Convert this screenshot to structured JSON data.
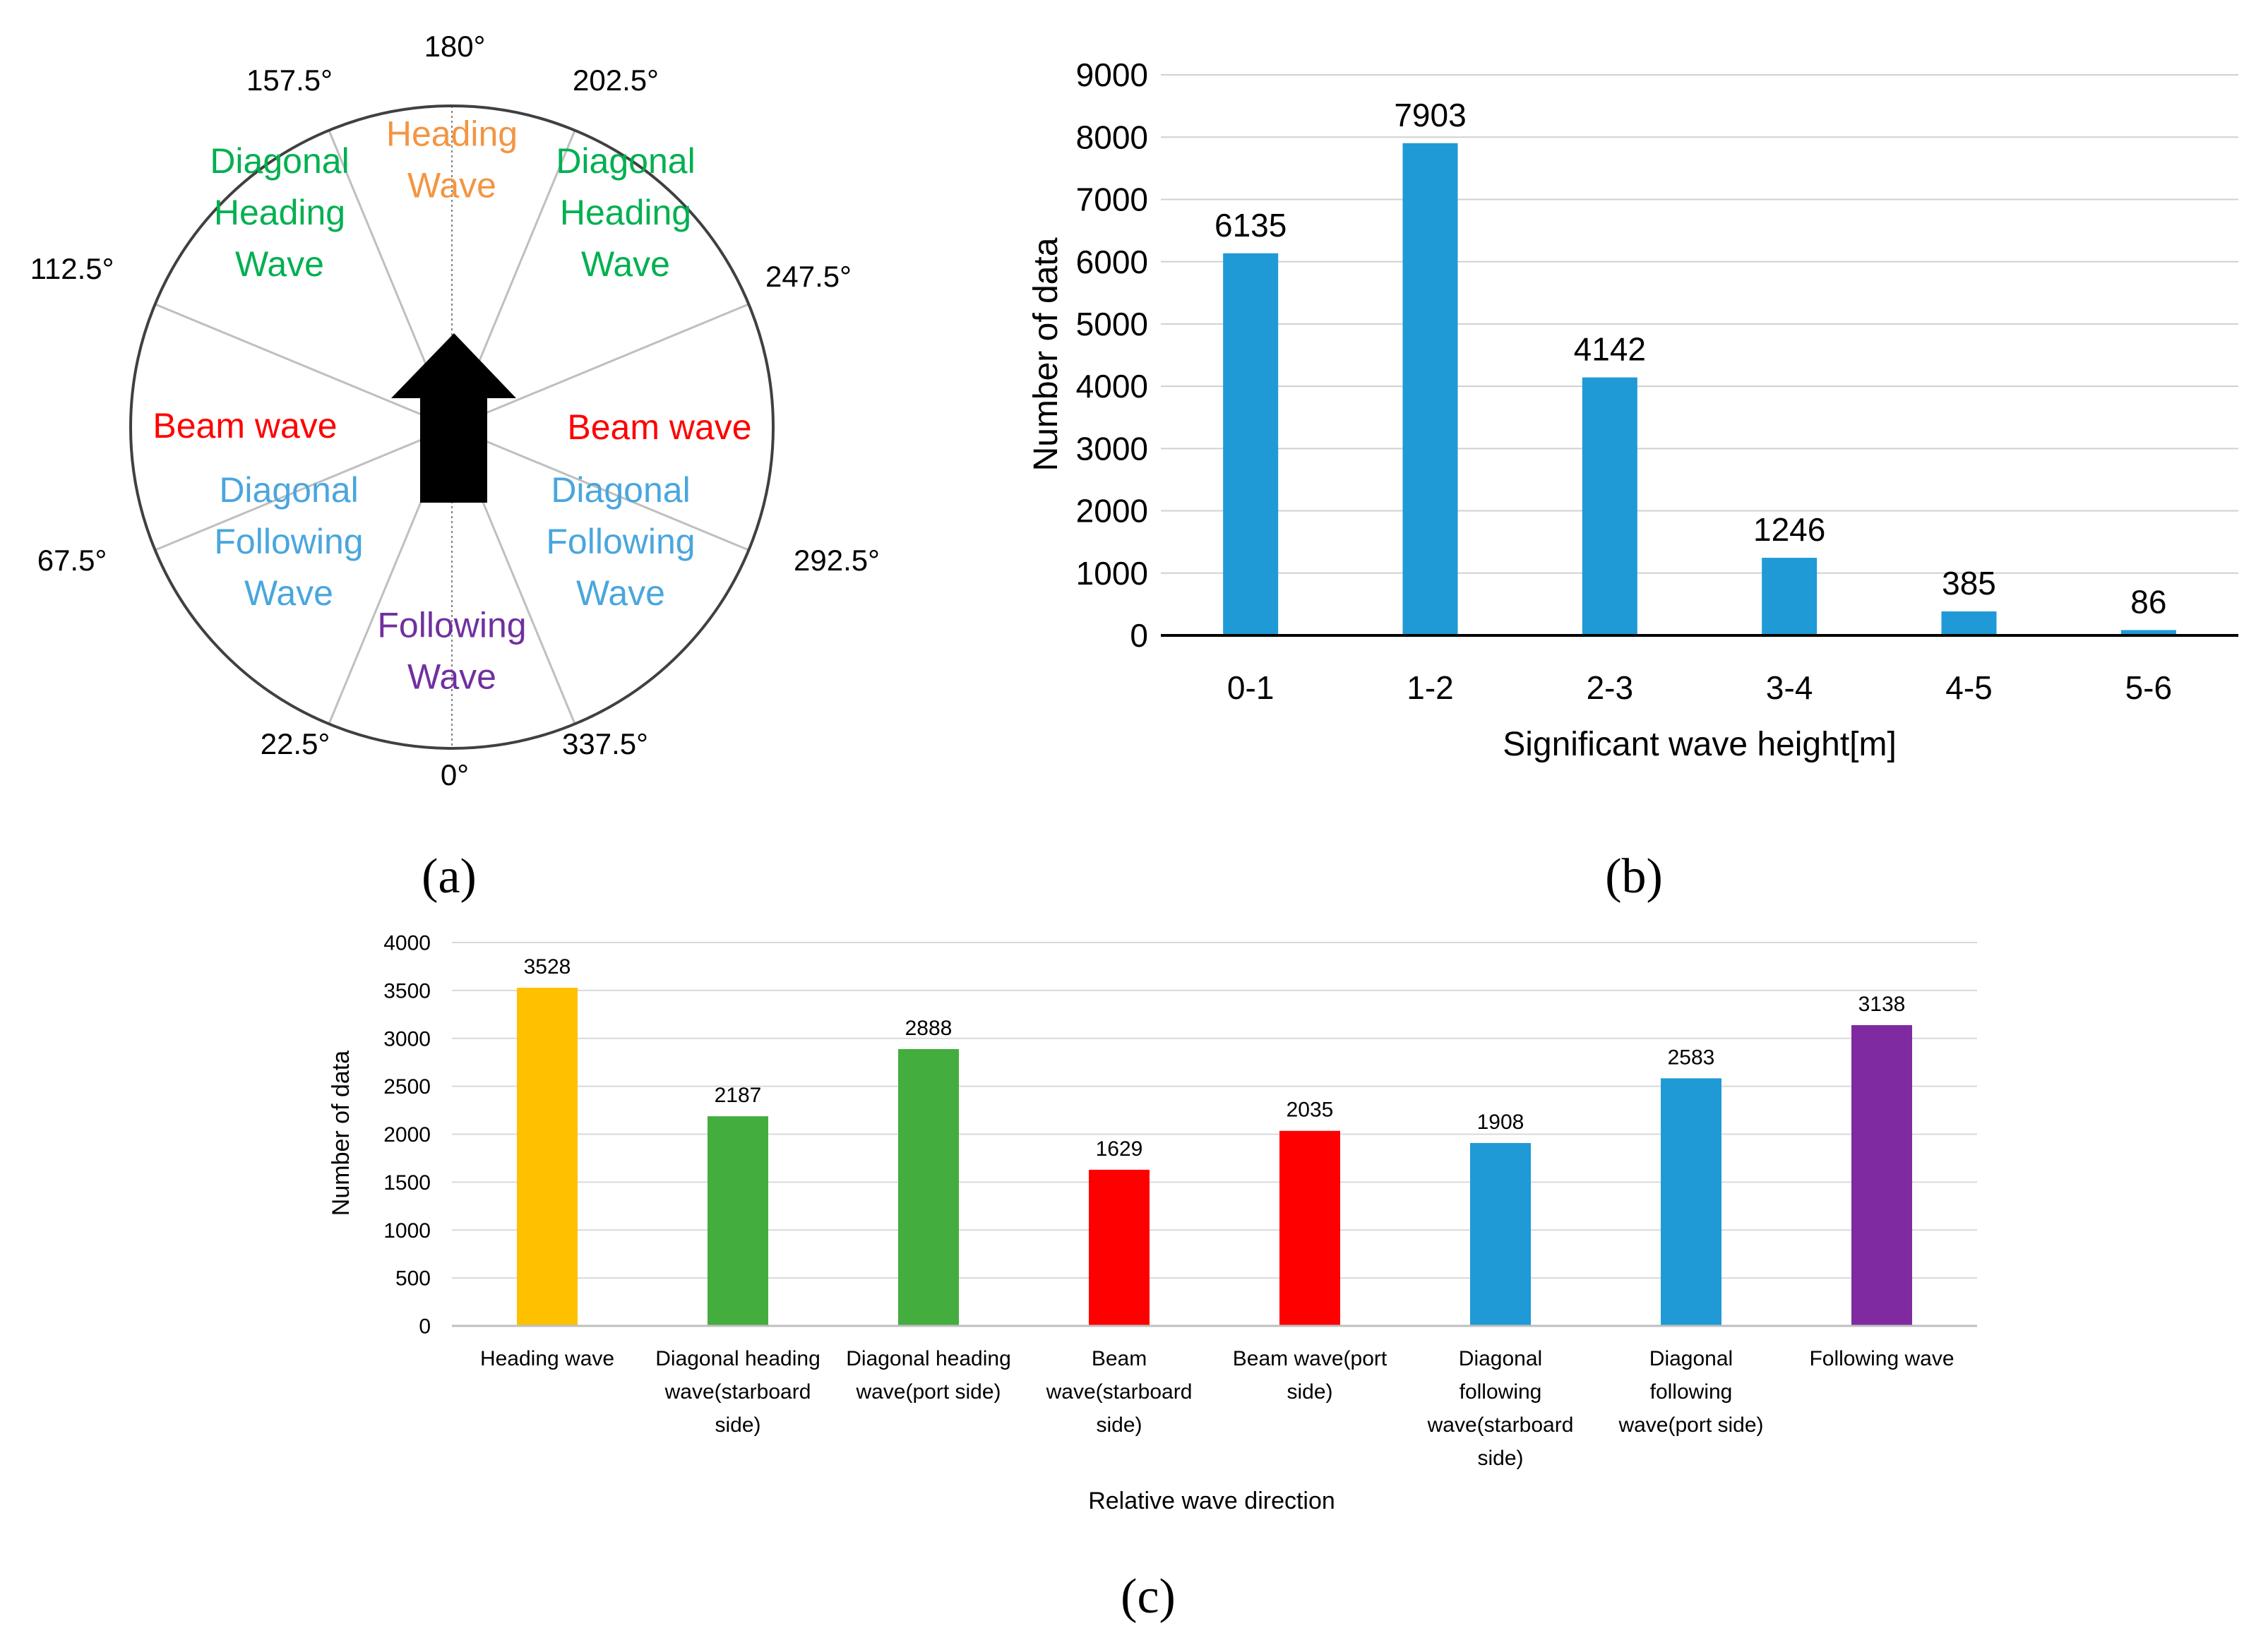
{
  "panels": {
    "a": {
      "label": "(a)",
      "angles": [
        "180°",
        "202.5°",
        "247.5°",
        "292.5°",
        "337.5°",
        "0°",
        "22.5°",
        "67.5°",
        "112.5°",
        "157.5°"
      ],
      "sectors": [
        {
          "lines": [
            "Heading",
            "Wave"
          ],
          "color": "#f39543"
        },
        {
          "lines": [
            "Diagonal",
            "Heading",
            "Wave"
          ],
          "color": "#00b050"
        },
        {
          "lines": [
            "Diagonal",
            "Heading",
            "Wave"
          ],
          "color": "#00b050"
        },
        {
          "lines": [
            "Beam wave"
          ],
          "color": "#ff0000"
        },
        {
          "lines": [
            "Beam wave"
          ],
          "color": "#ff0000"
        },
        {
          "lines": [
            "Diagonal",
            "Following",
            "Wave"
          ],
          "color": "#4aa6dd"
        },
        {
          "lines": [
            "Diagonal",
            "Following",
            "Wave"
          ],
          "color": "#4aa6dd"
        },
        {
          "lines": [
            "Following",
            "Wave"
          ],
          "color": "#7030a0"
        }
      ]
    },
    "b": {
      "label": "(b)"
    },
    "c": {
      "label": "(c)"
    }
  },
  "chart_data": [
    {
      "id": "b",
      "type": "bar",
      "title": "",
      "xlabel": "Significant wave height[m]",
      "ylabel": "Number of data",
      "ylim": [
        0,
        9000
      ],
      "yticks": [
        0,
        1000,
        2000,
        3000,
        4000,
        5000,
        6000,
        7000,
        8000,
        9000
      ],
      "grid": true,
      "categories": [
        "0-1",
        "1-2",
        "2-3",
        "3-4",
        "4-5",
        "5-6"
      ],
      "values": [
        6135,
        7903,
        4142,
        1246,
        385,
        86
      ],
      "colors": [
        "#1f9ad6",
        "#1f9ad6",
        "#1f9ad6",
        "#1f9ad6",
        "#1f9ad6",
        "#1f9ad6"
      ]
    },
    {
      "id": "c",
      "type": "bar",
      "title": "",
      "xlabel": "Relative wave direction",
      "ylabel": "Number of data",
      "ylim": [
        0,
        4000
      ],
      "yticks": [
        0,
        500,
        1000,
        1500,
        2000,
        2500,
        3000,
        3500,
        4000
      ],
      "grid": true,
      "categories": [
        [
          "Heading wave"
        ],
        [
          "Diagonal heading",
          "wave(starboard",
          "side)"
        ],
        [
          "Diagonal heading",
          "wave(port side)"
        ],
        [
          "Beam",
          "wave(starboard",
          "side)"
        ],
        [
          "Beam wave(port",
          "side)"
        ],
        [
          "Diagonal",
          "following",
          "wave(starboard",
          "side)"
        ],
        [
          "Diagonal",
          "following",
          "wave(port side)"
        ],
        [
          "Following wave"
        ]
      ],
      "values": [
        3528,
        2187,
        2888,
        1629,
        2035,
        1908,
        2583,
        3138
      ],
      "colors": [
        "#ffc000",
        "#43ad3e",
        "#43ad3e",
        "#ff0000",
        "#ff0000",
        "#1f9ad6",
        "#1f9ad6",
        "#7f2aa1"
      ]
    }
  ]
}
